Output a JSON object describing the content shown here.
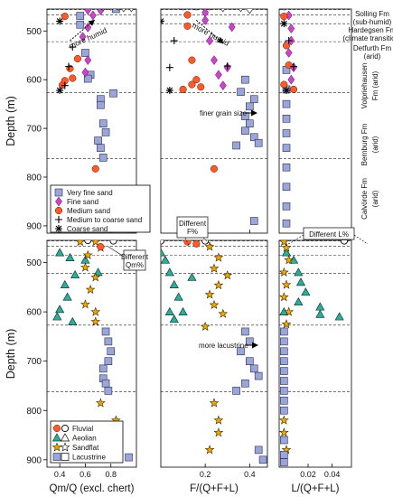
{
  "chart_data": {
    "type": "scatter",
    "depth_axis": {
      "label": "Depth (m)",
      "ylim": [
        455,
        915
      ],
      "ticks": [
        500,
        600,
        700,
        800,
        900
      ]
    },
    "boundaries": [
      456,
      467,
      485,
      522,
      627,
      762
    ],
    "formations": [
      "Solling Fm",
      "(sub-humid)",
      "Hardegsen Fm",
      "(climate transition)",
      "Detfurth Fm",
      "(arid)",
      "Volpriehausen",
      "Fm (arid)",
      "Bernburg Fm",
      "(arid)",
      "Calvörde Fm",
      "(arid)"
    ],
    "panels": [
      {
        "id": "qm",
        "xlabel": "Qm/Q (excl. chert)",
        "xlim": [
          0.3,
          1.0
        ],
        "ticks": [
          0.4,
          0.6,
          0.8
        ],
        "top": {
          "annotation": "more humid",
          "arrow": {
            "from": [
              0.48,
              520
            ],
            "to": [
              0.67,
              478
            ]
          },
          "very_fine": [
            [
              0.56,
              469
            ],
            [
              0.56,
              487
            ],
            [
              0.6,
              545
            ],
            [
              0.64,
              590
            ],
            [
              0.62,
              598
            ],
            [
              0.72,
              640
            ],
            [
              0.72,
              652
            ],
            [
              0.74,
              690
            ],
            [
              0.76,
              708
            ],
            [
              0.7,
              725
            ],
            [
              0.72,
              740
            ],
            [
              0.74,
              760
            ],
            [
              0.82,
              628
            ],
            [
              0.87,
              830
            ],
            [
              0.9,
              862
            ],
            [
              0.92,
              892
            ],
            [
              0.97,
              907
            ],
            [
              0.84,
              455
            ]
          ],
          "fine": [
            [
              0.62,
              457
            ],
            [
              0.66,
              468
            ],
            [
              0.62,
              493
            ],
            [
              0.58,
              512
            ],
            [
              0.62,
              560
            ],
            [
              0.6,
              585
            ],
            [
              0.72,
              458
            ]
          ],
          "medium": [
            [
              0.44,
              470
            ],
            [
              0.54,
              557
            ],
            [
              0.48,
              577
            ],
            [
              0.5,
              597
            ],
            [
              0.42,
              611
            ],
            [
              0.44,
              602
            ],
            [
              0.68,
              783
            ]
          ],
          "medium_coarse": [
            [
              0.5,
              533
            ],
            [
              0.47,
              573
            ],
            [
              0.44,
              612
            ]
          ],
          "coarse": [
            [
              0.4,
              480
            ],
            [
              0.4,
              622
            ]
          ],
          "open": [
            [
              0.74,
              450
            ],
            [
              0.8,
              450
            ],
            [
              0.86,
              450
            ]
          ],
          "diamond_open": [
            [
              0.9,
              451
            ],
            [
              0.96,
              451
            ]
          ]
        },
        "bottom": {
          "annotation": "Different Qm%",
          "fluvial": [
            [
              0.72,
              468
            ]
          ],
          "fluvial_open": [
            [
              0.82,
              456
            ],
            [
              0.62,
              455
            ]
          ],
          "aeolian": [
            [
              0.4,
              480
            ],
            [
              0.48,
              490
            ],
            [
              0.52,
              525
            ],
            [
              0.44,
              545
            ],
            [
              0.46,
              570
            ],
            [
              0.4,
              595
            ],
            [
              0.38,
              610
            ],
            [
              0.5,
              620
            ],
            [
              0.6,
              495
            ],
            [
              0.7,
              520
            ]
          ],
          "sandflat": [
            [
              0.56,
              458
            ],
            [
              0.68,
              458
            ],
            [
              0.72,
              470
            ],
            [
              0.62,
              485
            ],
            [
              0.6,
              510
            ],
            [
              0.68,
              530
            ],
            [
              0.64,
              555
            ],
            [
              0.6,
              585
            ],
            [
              0.68,
              600
            ],
            [
              0.68,
              620
            ],
            [
              0.84,
              820
            ],
            [
              0.86,
              845
            ],
            [
              0.72,
              785
            ]
          ],
          "lacustrine": [
            [
              0.76,
              640
            ],
            [
              0.78,
              660
            ],
            [
              0.8,
              680
            ],
            [
              0.78,
              700
            ],
            [
              0.74,
              715
            ],
            [
              0.74,
              735
            ],
            [
              0.76,
              745
            ],
            [
              0.78,
              760
            ],
            [
              0.94,
              895
            ]
          ]
        }
      },
      {
        "id": "f",
        "xlabel": "F/(Q+F+L)",
        "xlim": [
          0.0,
          0.48
        ],
        "ticks": [
          0.2,
          0.4
        ],
        "top": {
          "annotation": "more humid",
          "annotation2": "finer grain size",
          "arrow": {
            "from": [
              0.16,
              478
            ],
            "to": [
              0.28,
              525
            ]
          },
          "very_fine": [
            [
              0.42,
              640
            ],
            [
              0.4,
              655
            ],
            [
              0.38,
              675
            ],
            [
              0.4,
              690
            ],
            [
              0.38,
              705
            ],
            [
              0.42,
              718
            ],
            [
              0.44,
              730
            ],
            [
              0.34,
              735
            ],
            [
              0.38,
              600
            ],
            [
              0.36,
              625
            ],
            [
              0.42,
              890
            ]
          ],
          "fine": [
            [
              0.2,
              462
            ],
            [
              0.2,
              478
            ],
            [
              0.22,
              520
            ],
            [
              0.24,
              560
            ],
            [
              0.26,
              590
            ],
            [
              0.3,
              575
            ],
            [
              0.28,
              612
            ],
            [
              0.32,
              492
            ]
          ],
          "medium": [
            [
              0.12,
              467
            ],
            [
              0.12,
              490
            ],
            [
              0.14,
              560
            ],
            [
              0.16,
              600
            ],
            [
              0.14,
              610
            ],
            [
              0.18,
              615
            ],
            [
              0.1,
              620
            ],
            [
              0.24,
              783
            ]
          ],
          "medium_coarse": [
            [
              0.06,
              520
            ],
            [
              0.04,
              575
            ],
            [
              0.3,
              572
            ]
          ],
          "coarse": [
            [
              0.0,
              480
            ],
            [
              0.04,
              622
            ]
          ],
          "open": [
            [
              0.1,
              450
            ],
            [
              0.16,
              450
            ],
            [
              0.22,
              450
            ]
          ],
          "diamond_open": [
            [
              0.28,
              451
            ],
            [
              0.36,
              451
            ],
            [
              0.4,
              455
            ]
          ]
        },
        "bottom": {
          "annotation": "Different F%",
          "annotation2": "more lacustrine",
          "fluvial": [
            [
              0.12,
              458
            ],
            [
              0.16,
              462
            ]
          ],
          "fluvial_open": [
            [
              0.0,
              456
            ],
            [
              0.2,
              456
            ]
          ],
          "aeolian": [
            [
              0.0,
              480
            ],
            [
              0.02,
              495
            ],
            [
              0.04,
              520
            ],
            [
              0.06,
              545
            ],
            [
              0.08,
              570
            ],
            [
              0.04,
              600
            ],
            [
              0.06,
              615
            ],
            [
              0.1,
              600
            ],
            [
              0.14,
              530
            ]
          ],
          "sandflat": [
            [
              0.22,
              468
            ],
            [
              0.26,
              490
            ],
            [
              0.24,
              512
            ],
            [
              0.3,
              526
            ],
            [
              0.26,
              546
            ],
            [
              0.22,
              565
            ],
            [
              0.24,
              586
            ],
            [
              0.28,
              604
            ],
            [
              0.2,
              630
            ],
            [
              0.24,
              785
            ],
            [
              0.26,
              820
            ],
            [
              0.26,
              845
            ],
            [
              0.22,
              880
            ]
          ],
          "lacustrine": [
            [
              0.38,
              640
            ],
            [
              0.4,
              660
            ],
            [
              0.36,
              680
            ],
            [
              0.4,
              700
            ],
            [
              0.42,
              715
            ],
            [
              0.44,
              730
            ],
            [
              0.38,
              745
            ],
            [
              0.34,
              760
            ],
            [
              0.44,
              880
            ],
            [
              0.46,
              900
            ]
          ]
        }
      },
      {
        "id": "l",
        "xlabel": "L/(Q+F+L)",
        "xlim": [
          -0.004,
          0.056
        ],
        "ticks": [
          0.02,
          0.04
        ],
        "top": {
          "very_fine": [
            [
              0.002,
              580
            ],
            [
              0.002,
              620
            ],
            [
              0.002,
              650
            ],
            [
              0.002,
              680
            ],
            [
              0.002,
              710
            ],
            [
              0.002,
              740
            ],
            [
              0.002,
              780
            ],
            [
              0.002,
              820
            ],
            [
              0.002,
              860
            ],
            [
              0.002,
              895
            ]
          ],
          "fine": [
            [
              0.004,
              468
            ],
            [
              0.006,
              495
            ],
            [
              0.006,
              520
            ],
            [
              0.004,
              545
            ],
            [
              0.008,
              575
            ],
            [
              0.006,
              600
            ]
          ],
          "medium": [
            [
              0.0,
              470
            ],
            [
              0.002,
              530
            ],
            [
              0.004,
              570
            ],
            [
              0.0,
              610
            ],
            [
              0.008,
              620
            ]
          ],
          "medium_coarse": [
            [
              0.004,
              520
            ],
            [
              0.008,
              573
            ]
          ],
          "coarse": [
            [
              0.0,
              485
            ],
            [
              0.002,
              622
            ]
          ],
          "open": [
            [
              0.0,
              450
            ]
          ]
        },
        "bottom": {
          "annotation": "Different L%",
          "fluvial_open": [
            [
              0.05,
              456
            ]
          ],
          "aeolian": [
            [
              0.002,
              480
            ],
            [
              0.008,
              495
            ],
            [
              0.012,
              520
            ],
            [
              0.014,
              540
            ],
            [
              0.018,
              560
            ],
            [
              0.012,
              580
            ],
            [
              0.03,
              590
            ],
            [
              0.046,
              610
            ],
            [
              0.03,
              605
            ],
            [
              0.0,
              600
            ]
          ],
          "sandflat": [
            [
              0.0,
              458
            ],
            [
              0.002,
              470
            ],
            [
              0.004,
              495
            ],
            [
              0.0,
              520
            ],
            [
              0.002,
              545
            ],
            [
              0.0,
              570
            ],
            [
              0.004,
              600
            ],
            [
              0.002,
              625
            ],
            [
              0.0,
              820
            ],
            [
              0.0,
              845
            ],
            [
              0.002,
              880
            ]
          ],
          "lacustrine": [
            [
              0.0,
              640
            ],
            [
              0.0,
              660
            ],
            [
              0.0,
              680
            ],
            [
              0.0,
              700
            ],
            [
              0.0,
              720
            ],
            [
              0.0,
              740
            ],
            [
              0.0,
              760
            ],
            [
              0.0,
              780
            ],
            [
              0.0,
              800
            ],
            [
              0.0,
              860
            ],
            [
              0.0,
              890
            ],
            [
              0.0,
              905
            ]
          ]
        }
      }
    ],
    "legend_top": [
      {
        "key": "very_fine",
        "label": "Very fine sand"
      },
      {
        "key": "fine",
        "label": "Fine sand"
      },
      {
        "key": "medium",
        "label": "Medium sand"
      },
      {
        "key": "medium_coarse",
        "label": "Medium to coarse sand"
      },
      {
        "key": "coarse",
        "label": "Coarse sand"
      }
    ],
    "legend_bottom": [
      {
        "key": "fluvial",
        "label": "Fluvial"
      },
      {
        "key": "aeolian",
        "label": "Aeolian"
      },
      {
        "key": "sandflat",
        "label": "Sandflat"
      },
      {
        "key": "lacustrine",
        "label": "Lacustrine"
      }
    ],
    "colors": {
      "very_fine": "#9aa6d8",
      "fine": "#cc44cc",
      "medium": "#ff5a2a",
      "aeolian": "#2eae9a",
      "sandflat": "#f2a800",
      "lacustrine": "#9aa6d8",
      "fluvial": "#e03030"
    }
  }
}
